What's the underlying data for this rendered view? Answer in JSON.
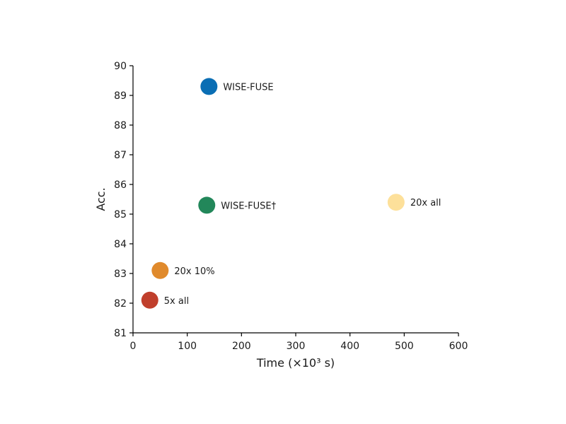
{
  "chart_data": {
    "type": "scatter",
    "title": "",
    "xlabel": "Time (×10³ s)",
    "ylabel": "Acc.",
    "xlim": [
      0,
      600
    ],
    "ylim": [
      81,
      90
    ],
    "xticks": [
      0,
      100,
      200,
      300,
      400,
      500,
      600
    ],
    "yticks": [
      81,
      82,
      83,
      84,
      85,
      86,
      87,
      88,
      89,
      90
    ],
    "grid": false,
    "legend": "none",
    "points": [
      {
        "label": "WISE-FUSE",
        "x": 140,
        "y": 89.3,
        "color": "#0a6eb4"
      },
      {
        "label": "WISE-FUSE†",
        "x": 136,
        "y": 85.3,
        "color": "#22875a"
      },
      {
        "label": "20x all",
        "x": 485,
        "y": 85.4,
        "color": "#fde09a"
      },
      {
        "label": "20x 10%",
        "x": 50,
        "y": 83.1,
        "color": "#e08a2c"
      },
      {
        "label": "5x all",
        "x": 31,
        "y": 82.1,
        "color": "#c03f2c"
      }
    ]
  }
}
